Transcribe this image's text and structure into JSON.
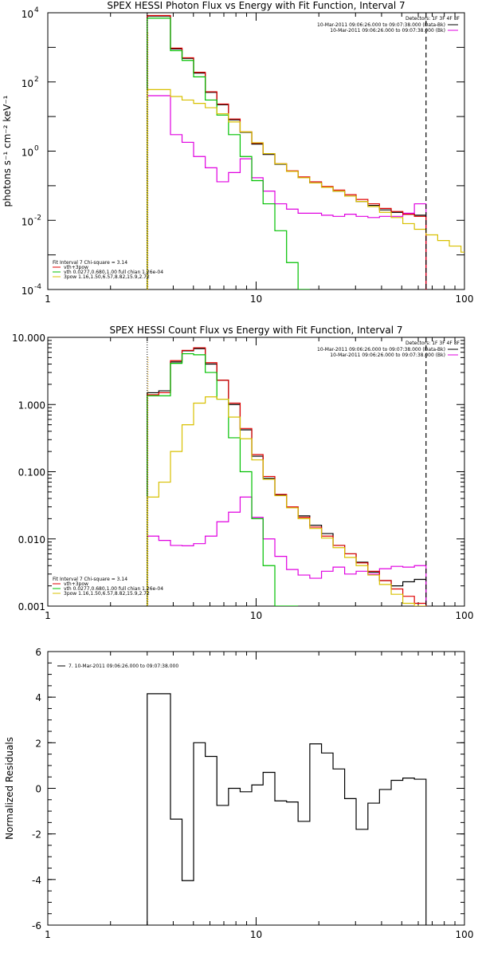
{
  "chart_data": [
    {
      "type": "line",
      "title": "SPEX HESSI Photon Flux vs Energy with Fit Function, Interval 7",
      "ylabel": "photons s⁻¹ cm⁻² keV⁻¹",
      "xscale": "log",
      "yscale": "log",
      "xlim": [
        1,
        100
      ],
      "ylim": [
        0.0001,
        10000
      ],
      "x_ticks": [
        "1",
        "10",
        "100"
      ],
      "y_ticks": [
        "10⁻⁴",
        "10⁻²",
        "10⁰",
        "10²",
        "10⁴"
      ],
      "y_tick_base": "10",
      "y_tick_exponents": [
        "-4",
        "-2",
        "0",
        "2",
        "4"
      ],
      "legend_top": [
        "Detectors: 1F 3F 4F 8F",
        "10-Mar-2011 09:06:26.000 to 09:07:38.000 (Data-Bk)",
        "10-Mar-2011 09:06:26.000 to 09:07:38.000 (Bk)"
      ],
      "legend_bottom": [
        "Fit Interval  7    Chi-square = 3.14",
        "vth+3pow",
        "vth 0.0277,0.680,1.00  full chian 1.26e-04",
        "3pow 1.16,1.50,6.57,8.82,15.9,2.72"
      ],
      "energy_edges": [
        3.0,
        3.41,
        3.88,
        4.41,
        5.01,
        5.7,
        6.48,
        7.37,
        8.38,
        9.53,
        10.8,
        12.3,
        14.0,
        15.9,
        18.1,
        20.6,
        23.4,
        26.6,
        30.2,
        34.4,
        39.1,
        44.5,
        50.6,
        57.5,
        65.4
      ],
      "vertical_markers": {
        "dotted": 3.0,
        "dashed": 65.4
      },
      "series": [
        {
          "name": "10-Mar-2011 09:06:26.000 to 09:07:38.000 (Data-Bk)",
          "color": "#000000",
          "values": [
            8000,
            8000,
            900,
            480,
            180,
            50,
            22,
            8,
            3.5,
            1.6,
            0.8,
            0.42,
            0.26,
            0.17,
            0.12,
            0.09,
            0.07,
            0.05,
            0.035,
            0.027,
            0.02,
            0.017,
            0.015,
            0.014
          ]
        },
        {
          "name": "10-Mar-2011 09:06:26.000 to 09:07:38.000 (Bk)",
          "color": "#e000e0",
          "values": [
            40,
            40,
            3,
            1.8,
            0.7,
            0.33,
            0.13,
            0.24,
            0.6,
            0.17,
            0.07,
            0.03,
            0.021,
            0.016,
            0.016,
            0.014,
            0.013,
            0.015,
            0.013,
            0.012,
            0.013,
            0.013,
            0.016,
            0.03
          ]
        },
        {
          "name": "vth+3pow",
          "color": "#e00000",
          "values": [
            8300,
            8300,
            950,
            500,
            190,
            52,
            23,
            8.5,
            3.6,
            1.7,
            0.85,
            0.43,
            0.27,
            0.18,
            0.13,
            0.095,
            0.075,
            0.055,
            0.04,
            0.03,
            0.022,
            0.018,
            0.015,
            0.013
          ]
        },
        {
          "name": "vth 0.0277,0.680,1.00",
          "color": "#00c000",
          "values": [
            7000,
            7000,
            800,
            420,
            140,
            30,
            11,
            3,
            0.7,
            0.14,
            0.03,
            0.005,
            0.0006,
            2e-05
          ]
        },
        {
          "name": "3pow 1.16,1.50,6.57,8.82,15.9,2.72",
          "color": "#d8c000",
          "values": [
            60,
            60,
            38,
            30,
            24,
            18,
            12,
            7,
            3.6,
            1.75,
            0.85,
            0.43,
            0.26,
            0.17,
            0.12,
            0.09,
            0.07,
            0.05,
            0.035,
            0.025,
            0.017,
            0.012,
            0.008,
            0.0055,
            0.0038,
            0.0026,
            0.0018,
            0.0012
          ]
        }
      ]
    },
    {
      "type": "line",
      "title": "SPEX HESSI Count Flux vs Energy with Fit Function, Interval 7",
      "ylabel": "",
      "xscale": "log",
      "yscale": "log",
      "xlim": [
        1,
        100
      ],
      "ylim": [
        0.001,
        10
      ],
      "x_ticks": [
        "1",
        "10",
        "100"
      ],
      "y_ticks": [
        "0.001",
        "0.010",
        "0.100",
        "1.000",
        "10.000"
      ],
      "legend_top": [
        "Detectors: 1F 3F 4F 8F",
        "10-Mar-2011 09:06:26.000 to 09:07:38.000 (Data-Bk)",
        "10-Mar-2011 09:06:26.000 to 09:07:38.000 (Bk)"
      ],
      "legend_bottom": [
        "Fit Interval  7    Chi-square = 3.14",
        "vth+3pow",
        "vth 0.0277,0.680,1.00  full chian 1.26e-04",
        "3pow 1.16,1.50,6.57,8.82,15.9,2.72"
      ],
      "energy_edges": [
        3.0,
        3.41,
        3.88,
        4.41,
        5.01,
        5.7,
        6.48,
        7.37,
        8.38,
        9.53,
        10.8,
        12.3,
        14.0,
        15.9,
        18.1,
        20.6,
        23.4,
        26.6,
        30.2,
        34.4,
        39.1,
        44.5,
        50.6,
        57.5,
        65.4
      ],
      "vertical_markers": {
        "dotted": 3.0,
        "dashed": 65.4
      },
      "series": [
        {
          "name": "10-Mar-2011 09:06:26.000 to 09:07:38.000 (Data-Bk)",
          "color": "#000000",
          "values": [
            1.5,
            1.6,
            4.3,
            6.3,
            6.8,
            4.0,
            2.3,
            1.0,
            0.42,
            0.17,
            0.08,
            0.045,
            0.03,
            0.022,
            0.016,
            0.012,
            0.008,
            0.006,
            0.0045,
            0.0032,
            0.0024,
            0.002,
            0.0023,
            0.0025
          ]
        },
        {
          "name": "10-Mar-2011 09:06:26.000 to 09:07:38.000 (Bk)",
          "color": "#e000e0",
          "values": [
            0.011,
            0.0095,
            0.008,
            0.0079,
            0.0085,
            0.011,
            0.018,
            0.025,
            0.042,
            0.021,
            0.01,
            0.0055,
            0.0035,
            0.0029,
            0.0026,
            0.0033,
            0.0038,
            0.003,
            0.0033,
            0.003,
            0.0036,
            0.0039,
            0.0038,
            0.004
          ]
        },
        {
          "name": "vth+3pow",
          "color": "#e00000",
          "values": [
            1.4,
            1.5,
            4.5,
            6.4,
            7.0,
            4.2,
            2.3,
            1.05,
            0.44,
            0.18,
            0.085,
            0.046,
            0.03,
            0.021,
            0.015,
            0.011,
            0.008,
            0.006,
            0.0044,
            0.0033,
            0.0024,
            0.0018,
            0.0014,
            0.0011
          ]
        },
        {
          "name": "vth 0.0277,0.680,1.00",
          "color": "#00c000",
          "values": [
            1.35,
            1.35,
            4.1,
            5.7,
            5.5,
            3.0,
            1.2,
            0.32,
            0.1,
            0.02,
            0.004,
            0.0009,
            0.0001
          ]
        },
        {
          "name": "3pow 1.16,1.50,6.57,8.82,15.9,2.72",
          "color": "#d8c000",
          "values": [
            0.042,
            0.07,
            0.2,
            0.5,
            1.05,
            1.3,
            1.2,
            0.65,
            0.31,
            0.15,
            0.077,
            0.044,
            0.029,
            0.02,
            0.0143,
            0.0103,
            0.0074,
            0.0053,
            0.004,
            0.0029,
            0.0021,
            0.0015,
            0.0011,
            0.0008
          ]
        }
      ]
    },
    {
      "type": "line",
      "title": "",
      "ylabel": "Normalized Residuals",
      "xscale": "log",
      "xlim": [
        1,
        100
      ],
      "ylim": [
        -6,
        6
      ],
      "x_ticks": [
        "1",
        "10",
        "100"
      ],
      "y_ticks": [
        "-6",
        "-4",
        "-2",
        "0",
        "2",
        "4",
        "6"
      ],
      "legend": [
        "7. 10-Mar-2011 09:06:26.000 to 09:07:38.000"
      ],
      "energy_edges": [
        3.0,
        3.41,
        3.88,
        4.41,
        5.01,
        5.7,
        6.48,
        7.37,
        8.38,
        9.53,
        10.8,
        12.3,
        14.0,
        15.9,
        18.1,
        20.6,
        23.4,
        26.6,
        30.2,
        34.4,
        39.1,
        44.5,
        50.6,
        57.5,
        65.4
      ],
      "series": [
        {
          "name": "7. 10-Mar-2011 09:06:26.000 to 09:07:38.000",
          "color": "#000000",
          "values": [
            4.15,
            4.15,
            -1.35,
            -4.05,
            2.0,
            1.4,
            -0.75,
            0.0,
            -0.15,
            0.15,
            0.7,
            -0.55,
            -0.6,
            -1.45,
            1.95,
            1.55,
            0.85,
            -0.45,
            -1.8,
            -0.65,
            -0.05,
            0.35,
            0.45,
            0.4
          ]
        }
      ]
    }
  ]
}
